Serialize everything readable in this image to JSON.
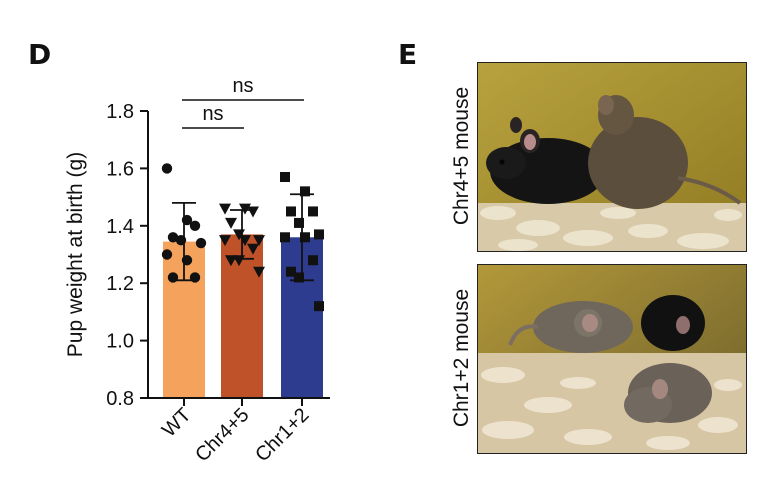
{
  "panel_d": {
    "letter": "D"
  },
  "panel_e": {
    "letter": "E",
    "photos": [
      {
        "caption": "Chr4+5 mouse"
      },
      {
        "caption": "Chr1+2 mouse"
      }
    ]
  },
  "chart_data": {
    "type": "bar",
    "ylabel": "Pup weight at birth (g)",
    "xlabel": "",
    "ylim": [
      0.8,
      1.8
    ],
    "yticks": [
      "0.8",
      "1.0",
      "1.2",
      "1.4",
      "1.6",
      "1.8"
    ],
    "categories": [
      "WT",
      "Chr4+5",
      "Chr1+2"
    ],
    "values": [
      1.345,
      1.37,
      1.36
    ],
    "sd": [
      0.135,
      0.085,
      0.15
    ],
    "bar_colors": [
      "#f5a25d",
      "#c0522a",
      "#2e3c8f"
    ],
    "point_markers": [
      "circle",
      "triangle-down",
      "square"
    ],
    "points": [
      [
        1.6,
        1.42,
        1.4,
        1.36,
        1.35,
        1.34,
        1.3,
        1.28,
        1.22,
        1.22
      ],
      [
        1.46,
        1.46,
        1.45,
        1.41,
        1.37,
        1.35,
        1.35,
        1.35,
        1.32,
        1.28,
        1.28,
        1.24
      ],
      [
        1.57,
        1.52,
        1.45,
        1.45,
        1.41,
        1.37,
        1.36,
        1.36,
        1.28,
        1.24,
        1.22,
        1.12
      ]
    ],
    "significance": [
      {
        "from": 0,
        "to": 1,
        "label": "ns"
      },
      {
        "from": 0,
        "to": 2,
        "label": "ns"
      }
    ]
  }
}
